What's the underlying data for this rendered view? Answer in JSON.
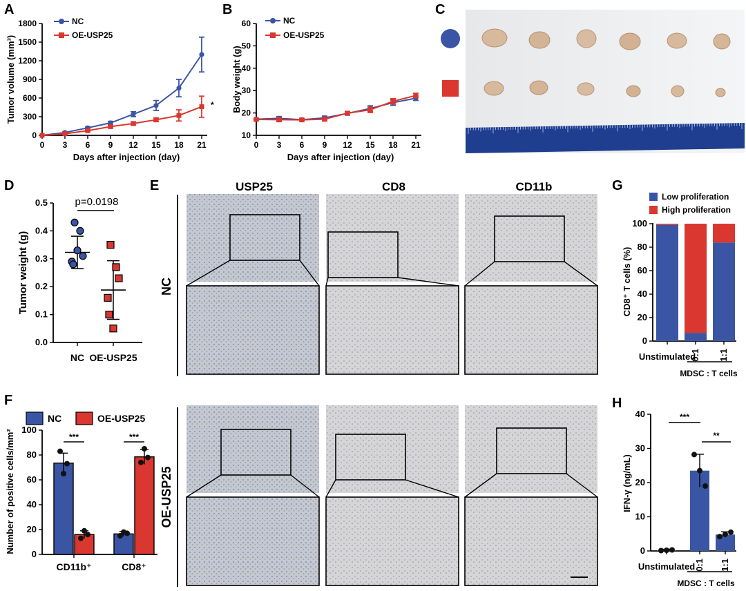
{
  "panels": {
    "A": "A",
    "B": "B",
    "C": "C",
    "D": "D",
    "E": "E",
    "F": "F",
    "G": "G",
    "H": "H"
  },
  "colors": {
    "nc": "#3a55a4",
    "oe": "#d9372f"
  },
  "legend": {
    "nc": "NC",
    "oe": "OE-USP25"
  },
  "panelA": {
    "ylabel": "Tumor volume (mm³)",
    "xlabel": "Days after injection (day)",
    "sig": "*"
  },
  "panelB": {
    "ylabel": "Body weight (g)",
    "xlabel": "Days after injection (day)"
  },
  "panelD": {
    "ylabel": "Tumor weight (g)",
    "pvalue": "p=0.0198"
  },
  "panelE": {
    "columns": [
      "USP25",
      "CD8",
      "CD11b"
    ],
    "rows": [
      "NC",
      "OE-USP25"
    ]
  },
  "panelF": {
    "ylabel": "Number of positive cells/mm²",
    "sig1": "***",
    "sig2": "***"
  },
  "panelG": {
    "ylabel": "CD8⁺ T cells (%)",
    "legend_low": "Low proliferation",
    "legend_high": "High proliferation",
    "group_label": "MDSC : T cells"
  },
  "panelH": {
    "ylabel": "IFN-γ (ng/mL)",
    "group_label": "MDSC : T cells",
    "sig1": "***",
    "sig2": "**"
  },
  "chart_data": [
    {
      "panel": "A",
      "type": "line",
      "title": "",
      "xlabel": "Days after injection (day)",
      "ylabel": "Tumor volume (mm³)",
      "x": [
        0,
        3,
        6,
        9,
        12,
        15,
        18,
        21
      ],
      "xticks": [
        "0",
        "3",
        "6",
        "9",
        "12",
        "15",
        "18",
        "21"
      ],
      "yticks": [
        "0",
        "300",
        "600",
        "900",
        "1200",
        "1500",
        "1800"
      ],
      "xlim": [
        0,
        21
      ],
      "ylim": [
        0,
        1800
      ],
      "series": [
        {
          "name": "NC",
          "values": [
            0,
            45,
            120,
            200,
            340,
            480,
            760,
            1300
          ],
          "err": [
            0,
            10,
            15,
            25,
            40,
            80,
            140,
            280
          ]
        },
        {
          "name": "OE-USP25",
          "values": [
            0,
            25,
            75,
            140,
            190,
            250,
            320,
            460
          ],
          "err": [
            0,
            8,
            12,
            20,
            25,
            30,
            90,
            170
          ]
        }
      ]
    },
    {
      "panel": "B",
      "type": "line",
      "title": "",
      "xlabel": "Days after injection (day)",
      "ylabel": "Body weight (g)",
      "x": [
        0,
        3,
        6,
        9,
        12,
        15,
        18,
        21
      ],
      "xticks": [
        "0",
        "3",
        "6",
        "9",
        "12",
        "15",
        "18",
        "21"
      ],
      "yticks": [
        "10",
        "20",
        "30",
        "40",
        "50",
        "60"
      ],
      "xlim": [
        0,
        21
      ],
      "ylim": [
        10,
        60
      ],
      "series": [
        {
          "name": "NC",
          "values": [
            17.2,
            17.6,
            17.0,
            17.8,
            19.8,
            22.0,
            24.6,
            26.6
          ],
          "err": [
            0.3,
            0.8,
            0.5,
            0.8,
            0.8,
            1.2,
            1.2,
            1.0
          ]
        },
        {
          "name": "OE-USP25",
          "values": [
            17.1,
            17.0,
            16.9,
            17.2,
            19.9,
            21.4,
            25.2,
            27.8
          ],
          "err": [
            0.3,
            0.9,
            0.5,
            0.8,
            0.8,
            1.2,
            1.2,
            1.0
          ]
        }
      ]
    },
    {
      "panel": "D",
      "type": "scatter",
      "title": "",
      "xlabel": "",
      "ylabel": "Tumor weight (g)",
      "categories": [
        "NC",
        "OE-USP25"
      ],
      "yticks": [
        "0.0",
        "0.1",
        "0.2",
        "0.3",
        "0.4",
        "0.5"
      ],
      "ylim": [
        0,
        0.5
      ],
      "groups": [
        {
          "name": "NC",
          "points": [
            0.43,
            0.4,
            0.31,
            0.29,
            0.28,
            0.33
          ],
          "mean": 0.323,
          "sd": 0.058
        },
        {
          "name": "OE-USP25",
          "points": [
            0.35,
            0.27,
            0.23,
            0.16,
            0.1,
            0.05
          ],
          "mean": 0.188,
          "sd": 0.105
        }
      ],
      "annotation": "p=0.0198"
    },
    {
      "panel": "F",
      "type": "bar",
      "title": "",
      "xlabel": "",
      "ylabel": "Number of positive cells/mm²",
      "categories": [
        "CD11b⁺",
        "CD8⁺"
      ],
      "yticks": [
        "0",
        "20",
        "40",
        "60",
        "80",
        "100"
      ],
      "ylim": [
        0,
        100
      ],
      "series": [
        {
          "name": "NC",
          "values": [
            73.5,
            16.5
          ],
          "err": [
            8.0,
            2.0
          ],
          "points": [
            [
              83,
              73,
              65
            ],
            [
              15,
              17,
              18
            ]
          ]
        },
        {
          "name": "OE-USP25",
          "values": [
            16.0,
            78.5
          ],
          "err": [
            3.0,
            6.0
          ],
          "points": [
            [
              13,
              16,
              19
            ],
            [
              74,
              78,
              85
            ]
          ]
        }
      ]
    },
    {
      "panel": "G",
      "type": "bar",
      "title": "",
      "xlabel": "MDSC : T cells",
      "ylabel": "CD8⁺ T cells (%)",
      "categories": [
        "Unstimulated",
        "0:1",
        "1:1"
      ],
      "yticks": [
        "0",
        "20",
        "40",
        "60",
        "80",
        "100"
      ],
      "ylim": [
        0,
        100
      ],
      "stacked": true,
      "series": [
        {
          "name": "Low proliferation",
          "values": [
            99,
            7,
            84
          ]
        },
        {
          "name": "High proliferation",
          "values": [
            1,
            93,
            16
          ]
        }
      ]
    },
    {
      "panel": "H",
      "type": "bar",
      "title": "",
      "xlabel": "MDSC : T cells",
      "ylabel": "IFN-γ (ng/mL)",
      "categories": [
        "Unstimulated",
        "0:1",
        "1:1"
      ],
      "yticks": [
        "0",
        "10",
        "20",
        "30",
        "40"
      ],
      "ylim": [
        0,
        40
      ],
      "series": [
        {
          "name": "IFN-γ",
          "values": [
            0.2,
            23.5,
            4.8
          ],
          "err": [
            0.3,
            4.8,
            0.8
          ],
          "points": [
            [
              0.1,
              0.2,
              0.3
            ],
            [
              28.2,
              23.5,
              19.0
            ],
            [
              4.2,
              4.9,
              5.5
            ]
          ]
        }
      ]
    }
  ]
}
